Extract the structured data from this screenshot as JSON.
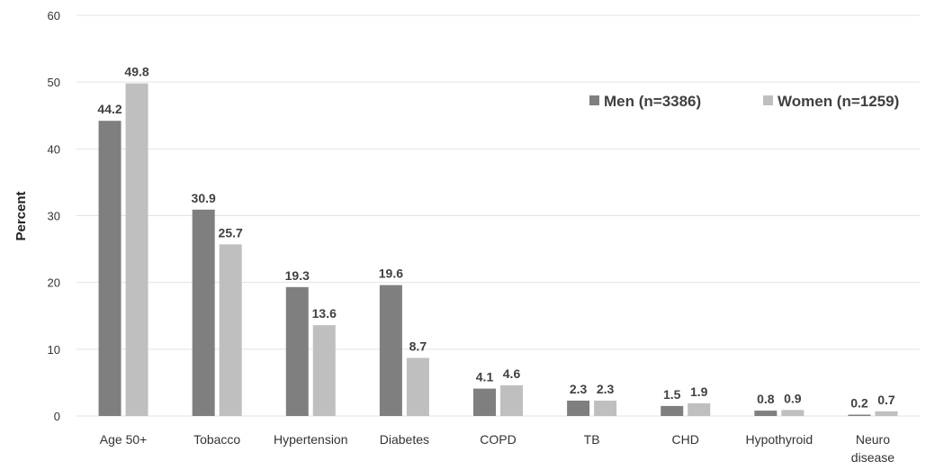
{
  "chart_data": {
    "type": "bar",
    "title": "",
    "xlabel": "",
    "ylabel": "Percent",
    "ylim": [
      0,
      60
    ],
    "yticks": [
      0,
      10,
      20,
      30,
      40,
      50,
      60
    ],
    "grid": true,
    "legend_position": "top-right",
    "categories": [
      [
        "Age 50+"
      ],
      [
        "Tobacco"
      ],
      [
        "Hypertension"
      ],
      [
        "Diabetes"
      ],
      [
        "COPD"
      ],
      [
        "TB"
      ],
      [
        "CHD"
      ],
      [
        "Hypothyroid"
      ],
      [
        "Neuro",
        "disease"
      ]
    ],
    "series": [
      {
        "name": "Men (n=3386)",
        "color": "#7f7f7f",
        "values": [
          44.2,
          30.9,
          19.3,
          19.6,
          4.1,
          2.3,
          1.5,
          0.8,
          0.2
        ],
        "labels": [
          "44.2",
          "30.9",
          "19.3",
          "19.6",
          "4.1",
          "2.3",
          "1.5",
          "0.8",
          "0.2"
        ]
      },
      {
        "name": "Women (n=1259)",
        "color": "#bfbfbf",
        "values": [
          49.8,
          25.7,
          13.6,
          8.7,
          4.6,
          2.3,
          1.9,
          0.9,
          0.7
        ],
        "labels": [
          "49.8",
          "25.7",
          "13.6",
          "8.7",
          "4.6",
          "2.3",
          "1.9",
          "0.9",
          "0.7"
        ]
      }
    ]
  }
}
